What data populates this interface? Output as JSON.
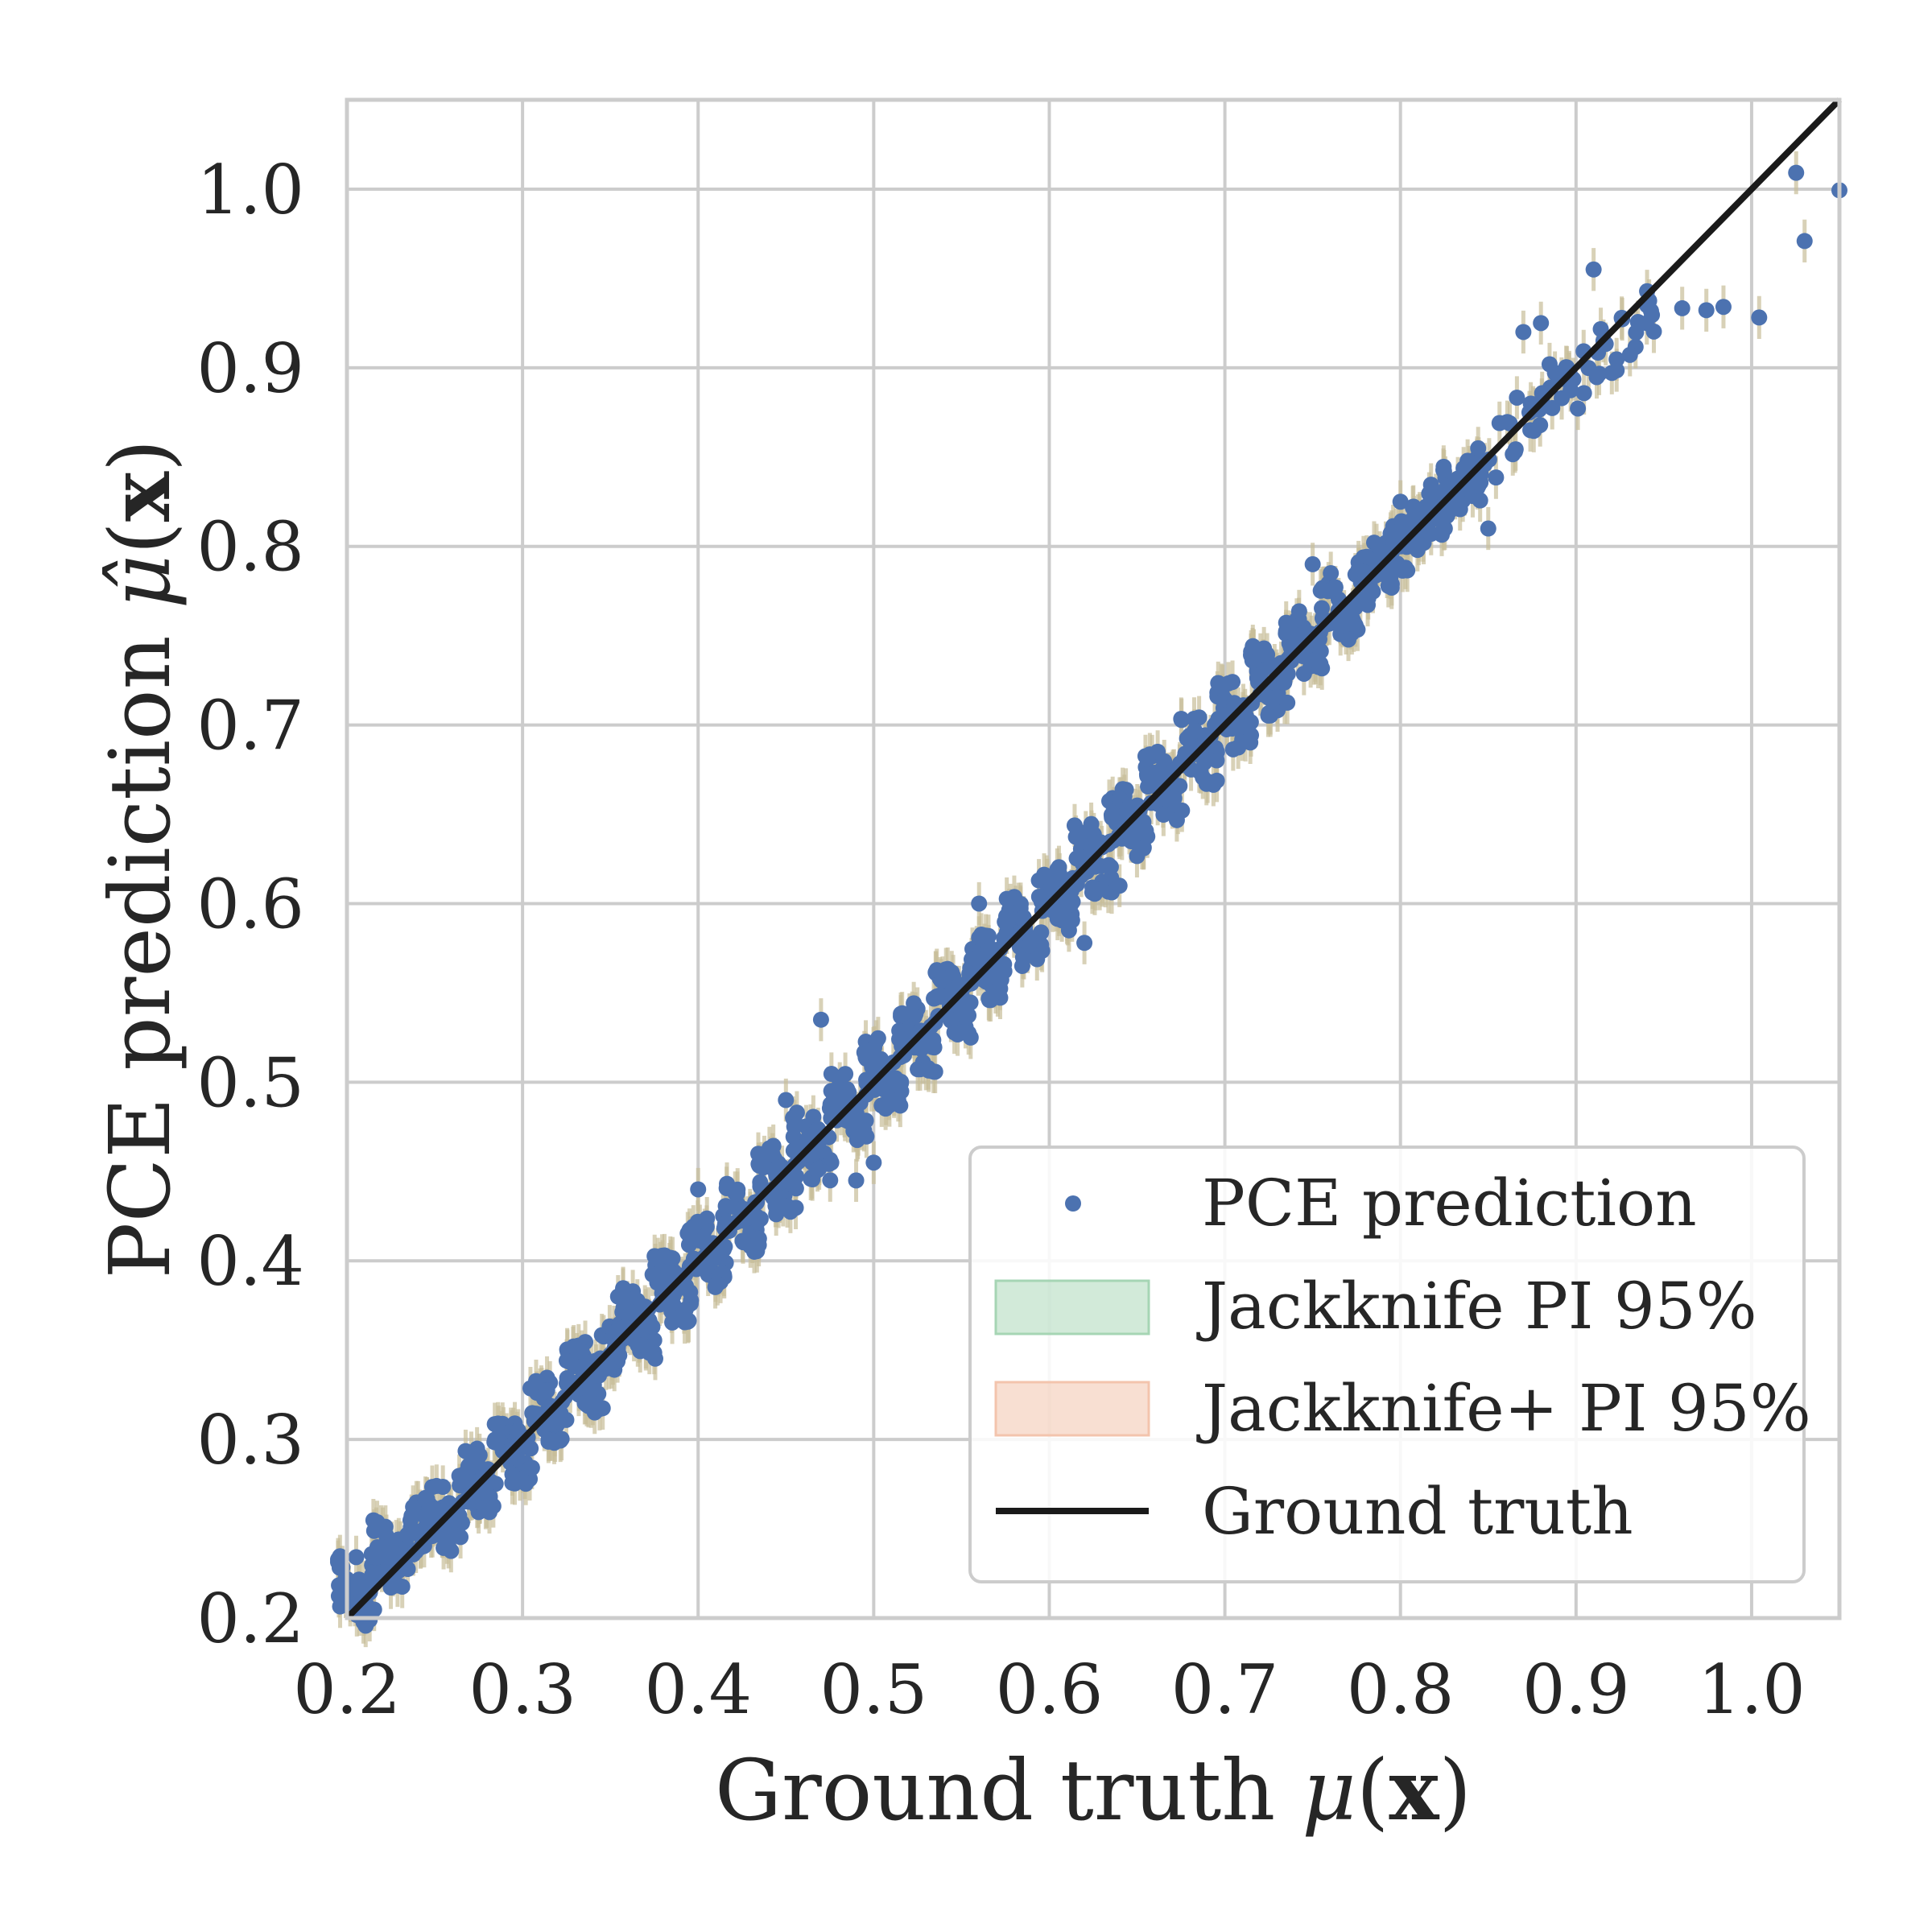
{
  "chart_data": {
    "type": "scatter",
    "xlabel": {
      "prefix": "Ground truth ",
      "math": "μ",
      "open": "(",
      "bold": "x",
      "close": ")"
    },
    "ylabel": {
      "prefix": "PCE prediction ",
      "math": "μ̂",
      "open": "(",
      "bold": "x",
      "close": ")"
    },
    "xlim": [
      0.2,
      1.05
    ],
    "ylim": [
      0.2,
      1.05
    ],
    "x_ticks": [
      0.2,
      0.3,
      0.4,
      0.5,
      0.6,
      0.7,
      0.8,
      0.9,
      1.0
    ],
    "x_tick_labels": [
      "0.2",
      "0.3",
      "0.4",
      "0.5",
      "0.6",
      "0.7",
      "0.8",
      "0.9",
      "1.0"
    ],
    "y_ticks": [
      0.2,
      0.3,
      0.4,
      0.5,
      0.6,
      0.7,
      0.8,
      0.9,
      1.0
    ],
    "y_tick_labels": [
      "0.2",
      "0.3",
      "0.4",
      "0.5",
      "0.6",
      "0.7",
      "0.8",
      "0.9",
      "1.0"
    ],
    "grid": true,
    "legend_position": "lower-right",
    "legend": [
      {
        "label": "PCE prediction",
        "kind": "marker"
      },
      {
        "label": "Jackknife PI 95%",
        "kind": "patch-green"
      },
      {
        "label": "Jackknife+ PI 95%",
        "kind": "patch-orange"
      },
      {
        "label": "Ground truth",
        "kind": "line"
      }
    ],
    "series": [
      {
        "name": "PCE prediction",
        "kind": "scatter",
        "x": [
          0.2,
          0.21,
          0.22,
          0.23,
          0.24,
          0.25,
          0.26,
          0.27,
          0.28,
          0.29,
          0.3,
          0.31,
          0.32,
          0.33,
          0.34,
          0.35,
          0.36,
          0.37,
          0.38,
          0.39,
          0.4,
          0.41,
          0.42,
          0.43,
          0.44,
          0.45,
          0.46,
          0.47,
          0.48,
          0.49,
          0.5,
          0.51,
          0.52,
          0.53,
          0.54,
          0.55,
          0.56,
          0.57,
          0.58,
          0.59,
          0.6,
          0.61,
          0.62,
          0.63,
          0.64,
          0.65,
          0.66,
          0.67,
          0.68,
          0.69,
          0.7,
          0.71,
          0.72,
          0.73,
          0.74,
          0.75,
          0.76,
          0.77,
          0.78,
          0.79,
          0.8,
          0.81,
          0.82,
          0.83,
          0.84,
          0.85,
          0.86,
          0.87,
          0.88,
          0.89,
          0.9,
          0.91,
          0.92,
          0.93,
          0.94,
          0.95,
          0.96,
          0.97,
          0.98,
          1.0,
          1.02,
          1.03,
          1.05
        ],
        "y": [
          0.22,
          0.21,
          0.24,
          0.23,
          0.25,
          0.26,
          0.25,
          0.28,
          0.27,
          0.3,
          0.29,
          0.32,
          0.31,
          0.34,
          0.33,
          0.35,
          0.37,
          0.36,
          0.39,
          0.38,
          0.41,
          0.4,
          0.43,
          0.42,
          0.45,
          0.44,
          0.47,
          0.46,
          0.49,
          0.48,
          0.51,
          0.5,
          0.53,
          0.52,
          0.55,
          0.54,
          0.57,
          0.56,
          0.59,
          0.58,
          0.61,
          0.6,
          0.63,
          0.62,
          0.65,
          0.64,
          0.67,
          0.66,
          0.69,
          0.68,
          0.71,
          0.7,
          0.73,
          0.72,
          0.75,
          0.74,
          0.77,
          0.76,
          0.78,
          0.79,
          0.8,
          0.81,
          0.82,
          0.83,
          0.84,
          0.85,
          0.86,
          0.87,
          0.88,
          0.89,
          0.89,
          0.9,
          0.91,
          0.92,
          0.93,
          0.93,
          0.94,
          0.93,
          0.92,
          0.94,
          1.0,
          0.98,
          1.0
        ],
        "outliers": [
          [
            0.47,
            0.535
          ],
          [
            0.49,
            0.445
          ],
          [
            0.5,
            0.455
          ],
          [
            0.4,
            0.44
          ],
          [
            0.56,
            0.6
          ],
          [
            0.64,
            0.61
          ],
          [
            0.62,
            0.578
          ],
          [
            0.91,
            0.955
          ],
          [
            0.87,
            0.92
          ],
          [
            0.88,
            0.925
          ],
          [
            0.85,
            0.81
          ],
          [
            0.8,
            0.825
          ],
          [
            0.75,
            0.79
          ],
          [
            0.45,
            0.49
          ],
          [
            0.34,
            0.32
          ]
        ]
      },
      {
        "name": "Jackknife PI 95%",
        "kind": "band",
        "halfwidth": 0.012
      },
      {
        "name": "Jackknife+ PI 95%",
        "kind": "band",
        "halfwidth": 0.012
      },
      {
        "name": "Ground truth",
        "kind": "line",
        "x": [
          0.2,
          1.05
        ],
        "y": [
          0.2,
          1.05
        ]
      }
    ]
  },
  "colors": {
    "points": "#4c72b0",
    "band": "#c8bd98",
    "band_green": "#a6d5b4",
    "band_orange": "#f3c4ad",
    "truth": "#1a1a1a",
    "grid": "#cccccc",
    "spine": "#cccccc"
  }
}
